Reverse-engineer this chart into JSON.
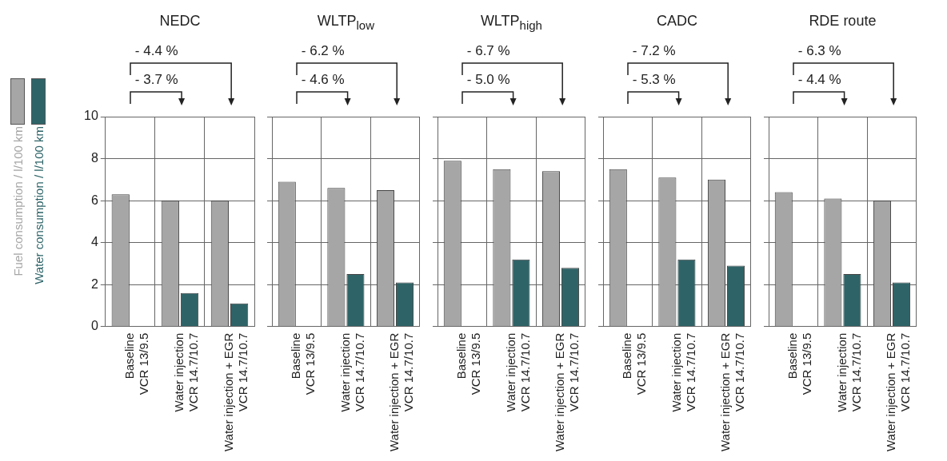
{
  "chart_data": [
    {
      "type": "bar",
      "title": "NEDC",
      "categories": [
        "Baseline\nVCR 13/9.5",
        "Water injection\nVCR 14.7/10.7",
        "Water injection + EGR\nVCR 14.7/10.7"
      ],
      "series": [
        {
          "name": "Fuel consumption / l/100 km",
          "color": "#a6a6a6",
          "values": [
            6.3,
            6.0,
            6.0
          ]
        },
        {
          "name": "Water consumption / l/100 km",
          "color": "#2e6468",
          "values": [
            null,
            1.6,
            1.1
          ]
        }
      ],
      "ylim": [
        0,
        10
      ],
      "yticks": [
        0,
        2,
        4,
        6,
        8,
        10
      ],
      "grid": true,
      "legend": "left",
      "annotations": [
        "- 4.4 %",
        "- 3.7 %"
      ]
    },
    {
      "type": "bar",
      "title": "WLTP$_{low}$",
      "categories": [
        "Baseline\nVCR 13/9.5",
        "Water injection\nVCR 14.7/10.7",
        "Water injection + EGR\nVCR 14.7/10.7"
      ],
      "series": [
        {
          "color": "#a6a6a6",
          "values": [
            6.9,
            6.6,
            6.5
          ]
        },
        {
          "color": "#2e6468",
          "values": [
            null,
            2.5,
            2.1
          ]
        }
      ],
      "ylim": [
        0,
        10
      ],
      "yticks": [
        0,
        2,
        4,
        6,
        8,
        10
      ],
      "grid": true,
      "tick_labels": "x",
      "annotations": [
        "- 6.2 %",
        "- 4.6 %"
      ]
    },
    {
      "type": "bar",
      "title": "WLTP$_{high}$",
      "categories": [
        "Baseline\nVCR 13/9.5",
        "Water injection\nVCR 14.7/10.7",
        "Water injection + EGR\nVCR 14.7/10.7"
      ],
      "series": [
        {
          "color": "#a6a6a6",
          "values": [
            7.9,
            7.5,
            7.4
          ]
        },
        {
          "color": "#2e6468",
          "values": [
            null,
            3.2,
            2.8
          ]
        }
      ],
      "ylim": [
        0,
        10
      ],
      "yticks": [
        0,
        2,
        4,
        6,
        8,
        10
      ],
      "grid": true,
      "tick_labels": "x",
      "annotations": [
        "- 6.7 %",
        "- 5.0 %"
      ]
    },
    {
      "type": "bar",
      "title": "CADC",
      "categories": [
        "Baseline\nVCR 13/9.5",
        "Water injection\nVCR 14.7/10.7",
        "Water injection + EGR\nVCR 14.7/10.7"
      ],
      "series": [
        {
          "color": "#a6a6a6",
          "values": [
            7.5,
            7.1,
            7.0
          ]
        },
        {
          "color": "#2e6468",
          "values": [
            null,
            3.2,
            2.9
          ]
        }
      ],
      "ylim": [
        0,
        10
      ],
      "yticks": [
        0,
        2,
        4,
        6,
        8,
        10
      ],
      "grid": true,
      "tick_labels": "x",
      "annotations": [
        "- 7.2 %",
        "- 5.3 %"
      ]
    },
    {
      "type": "bar",
      "title": "RDE route",
      "categories": [
        "Baseline\nVCR 13/9.5",
        "Water injection\nVCR 14.7/10.7",
        "Water injection + EGR\nVCR 14.7/10.7"
      ],
      "series": [
        {
          "color": "#a6a6a6",
          "values": [
            6.4,
            6.1,
            6.0
          ]
        },
        {
          "color": "#2e6468",
          "values": [
            null,
            2.5,
            2.1
          ]
        }
      ],
      "ylim": [
        0,
        10
      ],
      "yticks": [
        0,
        2,
        4,
        6,
        8,
        10
      ],
      "grid": true,
      "tick_labels": "x",
      "annotations": [
        "- 6.3 %",
        "- 4.4 %"
      ]
    }
  ]
}
